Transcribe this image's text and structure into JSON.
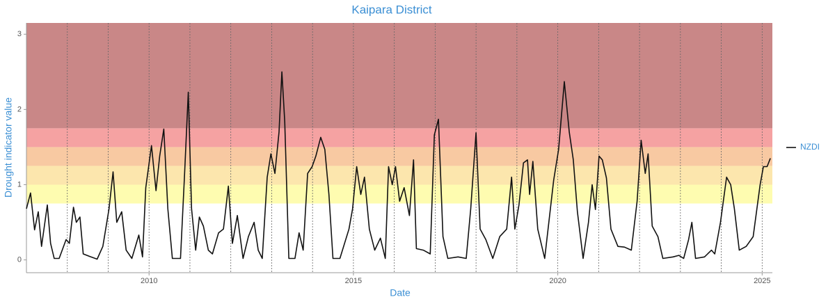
{
  "chart_data": {
    "type": "line",
    "title": "Kaipara District",
    "x_label": "Date",
    "y_label": "Drought indicator value",
    "xlim": [
      2007,
      2025.25
    ],
    "ylim": [
      -0.17,
      3.15
    ],
    "xticks": [
      2010,
      2015,
      2020,
      2025
    ],
    "yticks": [
      0,
      1,
      2,
      3
    ],
    "xgrid": [
      2008,
      2009,
      2010,
      2011,
      2012,
      2013,
      2014,
      2015,
      2016,
      2017,
      2018,
      2019,
      2020,
      2021,
      2022,
      2023,
      2024,
      2025
    ],
    "bands": [
      {
        "from": 0.75,
        "to": 1,
        "color": "#fefcb0"
      },
      {
        "from": 1,
        "to": 1.25,
        "color": "#fce6ad"
      },
      {
        "from": 1.25,
        "to": 1.5,
        "color": "#f8c9a2"
      },
      {
        "from": 1.5,
        "to": 1.75,
        "color": "#f5a2a2"
      },
      {
        "from": 1.75,
        "to": 3.15,
        "color": "#c98787"
      }
    ],
    "series": [
      {
        "name": "NZDI",
        "color": "#111111",
        "x": [
          2007.0,
          2007.1,
          2007.2,
          2007.29,
          2007.37,
          2007.51,
          2007.59,
          2007.68,
          2007.8,
          2007.97,
          2008.05,
          2008.15,
          2008.22,
          2008.31,
          2008.39,
          2008.53,
          2008.73,
          2008.87,
          2009.02,
          2009.12,
          2009.21,
          2009.33,
          2009.44,
          2009.58,
          2009.75,
          2009.84,
          2009.92,
          2010.06,
          2010.17,
          2010.26,
          2010.36,
          2010.46,
          2010.57,
          2010.77,
          2010.87,
          2010.96,
          2011.04,
          2011.14,
          2011.23,
          2011.33,
          2011.45,
          2011.55,
          2011.7,
          2011.82,
          2011.94,
          2012.04,
          2012.16,
          2012.3,
          2012.43,
          2012.57,
          2012.67,
          2012.77,
          2012.89,
          2012.98,
          2013.08,
          2013.18,
          2013.25,
          2013.32,
          2013.42,
          2013.57,
          2013.67,
          2013.77,
          2013.88,
          2013.99,
          2014.08,
          2014.2,
          2014.3,
          2014.4,
          2014.5,
          2014.67,
          2014.89,
          2014.98,
          2015.08,
          2015.18,
          2015.27,
          2015.39,
          2015.52,
          2015.66,
          2015.78,
          2015.86,
          2015.95,
          2016.03,
          2016.13,
          2016.24,
          2016.37,
          2016.47,
          2016.54,
          2016.71,
          2016.88,
          2016.98,
          2017.08,
          2017.19,
          2017.31,
          2017.56,
          2017.76,
          2017.87,
          2018.0,
          2018.1,
          2018.24,
          2018.41,
          2018.58,
          2018.75,
          2018.87,
          2018.95,
          2019.05,
          2019.16,
          2019.26,
          2019.31,
          2019.39,
          2019.51,
          2019.68,
          2019.9,
          2020.02,
          2020.16,
          2020.28,
          2020.38,
          2020.48,
          2020.62,
          2020.75,
          2020.84,
          2020.92,
          2021.01,
          2021.09,
          2021.19,
          2021.3,
          2021.47,
          2021.63,
          2021.8,
          2021.94,
          2022.04,
          2022.14,
          2022.21,
          2022.31,
          2022.45,
          2022.57,
          2022.82,
          2022.96,
          2023.08,
          2023.2,
          2023.28,
          2023.37,
          2023.59,
          2023.76,
          2023.84,
          2023.98,
          2024.13,
          2024.23,
          2024.32,
          2024.44,
          2024.61,
          2024.78,
          2024.95,
          2025.03,
          2025.12,
          2025.2
        ],
        "values": [
          0.68,
          0.89,
          0.4,
          0.64,
          0.18,
          0.73,
          0.22,
          0.02,
          0.02,
          0.27,
          0.22,
          0.7,
          0.5,
          0.57,
          0.08,
          0.05,
          0.01,
          0.18,
          0.68,
          1.17,
          0.5,
          0.64,
          0.13,
          0.02,
          0.33,
          0.04,
          0.96,
          1.52,
          0.92,
          1.38,
          1.74,
          0.68,
          0.02,
          0.02,
          1.15,
          2.23,
          0.68,
          0.13,
          0.57,
          0.45,
          0.13,
          0.08,
          0.36,
          0.41,
          0.98,
          0.22,
          0.59,
          0.02,
          0.31,
          0.5,
          0.13,
          0.02,
          1.1,
          1.41,
          1.15,
          1.7,
          2.5,
          1.84,
          0.02,
          0.02,
          0.36,
          0.13,
          1.15,
          1.24,
          1.38,
          1.63,
          1.47,
          0.87,
          0.02,
          0.02,
          0.41,
          0.68,
          1.24,
          0.87,
          1.1,
          0.41,
          0.13,
          0.29,
          0.02,
          1.24,
          1.0,
          1.24,
          0.78,
          0.96,
          0.59,
          1.33,
          0.15,
          0.13,
          0.08,
          1.66,
          1.87,
          0.31,
          0.02,
          0.04,
          0.02,
          0.68,
          1.69,
          0.41,
          0.27,
          0.02,
          0.31,
          0.41,
          1.1,
          0.41,
          0.73,
          1.29,
          1.33,
          0.87,
          1.31,
          0.41,
          0.02,
          1.06,
          1.47,
          2.37,
          1.7,
          1.33,
          0.64,
          0.02,
          0.5,
          1.0,
          0.67,
          1.38,
          1.33,
          1.09,
          0.41,
          0.18,
          0.17,
          0.13,
          0.78,
          1.59,
          1.15,
          1.41,
          0.45,
          0.31,
          0.02,
          0.04,
          0.06,
          0.02,
          0.27,
          0.5,
          0.02,
          0.04,
          0.13,
          0.08,
          0.5,
          1.1,
          1.0,
          0.68,
          0.13,
          0.18,
          0.31,
          1.0,
          1.24,
          1.24,
          1.35
        ]
      }
    ]
  }
}
